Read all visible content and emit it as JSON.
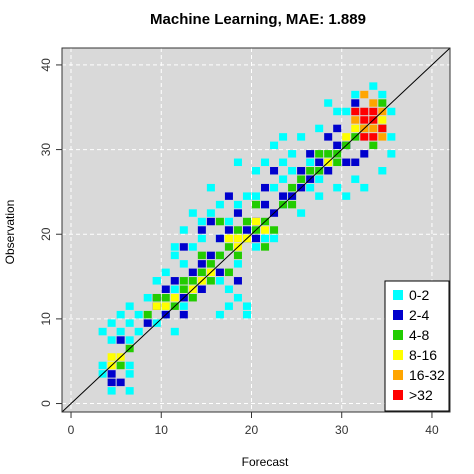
{
  "chart_data": {
    "type": "heatmap",
    "title": "Machine Learning, MAE: 1.889",
    "xlabel": "Forecast",
    "ylabel": "Observation",
    "xlim": [
      -1,
      42
    ],
    "ylim": [
      -1,
      42
    ],
    "xticks": [
      0,
      10,
      20,
      30,
      40
    ],
    "yticks": [
      0,
      10,
      20,
      30,
      40
    ],
    "grid": true,
    "reference_line": "y = x",
    "bin_width": 1,
    "legend_position": "bottom-right",
    "legend": [
      {
        "label": "0-2",
        "color": "#00ffff"
      },
      {
        "label": "2-4",
        "color": "#0000cd"
      },
      {
        "label": "4-8",
        "color": "#22cc00"
      },
      {
        "label": "8-16",
        "color": "#ffff00"
      },
      {
        "label": "16-32",
        "color": "#ffa500"
      },
      {
        "label": ">32",
        "color": "#ff0000"
      }
    ],
    "bins_by_class": [
      [
        [
          4,
          1
        ],
        [
          6,
          1
        ],
        [
          3,
          3
        ],
        [
          6,
          3
        ],
        [
          3,
          4
        ],
        [
          6,
          4
        ],
        [
          4,
          7
        ],
        [
          6,
          7
        ],
        [
          3,
          8
        ],
        [
          5,
          8
        ],
        [
          7,
          8
        ],
        [
          4,
          9
        ],
        [
          6,
          9
        ],
        [
          5,
          10
        ],
        [
          7,
          10
        ],
        [
          6,
          11
        ],
        [
          9,
          9
        ],
        [
          8,
          12
        ],
        [
          10,
          11
        ],
        [
          9,
          14
        ],
        [
          11,
          13
        ],
        [
          10,
          15
        ],
        [
          13,
          13
        ],
        [
          12,
          16
        ],
        [
          11,
          18
        ],
        [
          13,
          18
        ],
        [
          12,
          20
        ],
        [
          14,
          21
        ],
        [
          13,
          22
        ],
        [
          11,
          17
        ],
        [
          15,
          22
        ],
        [
          16,
          10
        ],
        [
          17,
          11
        ],
        [
          17,
          13
        ],
        [
          16,
          14
        ],
        [
          18,
          12
        ],
        [
          19,
          10
        ],
        [
          19,
          11
        ],
        [
          18,
          16
        ],
        [
          16,
          17
        ],
        [
          16,
          19
        ],
        [
          18,
          23
        ],
        [
          19,
          24
        ],
        [
          20,
          24
        ],
        [
          20,
          18
        ],
        [
          21,
          19
        ],
        [
          22,
          19
        ],
        [
          21,
          23
        ],
        [
          23,
          23
        ],
        [
          22,
          25
        ],
        [
          20,
          27
        ],
        [
          21,
          28
        ],
        [
          23,
          28
        ],
        [
          24,
          27
        ],
        [
          23,
          31
        ],
        [
          25,
          31
        ],
        [
          24,
          24
        ],
        [
          22,
          30
        ],
        [
          24,
          29
        ],
        [
          26,
          28
        ],
        [
          27,
          32
        ],
        [
          28,
          35
        ],
        [
          29,
          34
        ],
        [
          30,
          34
        ],
        [
          31,
          36
        ],
        [
          33,
          37
        ],
        [
          34,
          36
        ],
        [
          35,
          34
        ],
        [
          35,
          31
        ],
        [
          35,
          29
        ],
        [
          34,
          27
        ],
        [
          32,
          25
        ],
        [
          30,
          24
        ],
        [
          29,
          25
        ],
        [
          28,
          28
        ],
        [
          27,
          26
        ],
        [
          26,
          25
        ],
        [
          31,
          26
        ],
        [
          27,
          24
        ],
        [
          25,
          22
        ],
        [
          23,
          26
        ],
        [
          15,
          25
        ],
        [
          16,
          23
        ],
        [
          17,
          21
        ],
        [
          14,
          19
        ],
        [
          18,
          28
        ],
        [
          9,
          14
        ],
        [
          12,
          11
        ],
        [
          10,
          10
        ],
        [
          11,
          8
        ]
      ],
      [
        [
          4,
          2
        ],
        [
          5,
          2
        ],
        [
          4,
          3
        ],
        [
          5,
          7
        ],
        [
          8,
          9
        ],
        [
          9,
          11
        ],
        [
          10,
          10
        ],
        [
          9,
          12
        ],
        [
          10,
          13
        ],
        [
          11,
          14
        ],
        [
          12,
          12
        ],
        [
          12,
          10
        ],
        [
          13,
          15
        ],
        [
          14,
          16
        ],
        [
          15,
          17
        ],
        [
          16,
          19
        ],
        [
          17,
          20
        ],
        [
          17,
          24
        ],
        [
          18,
          22
        ],
        [
          19,
          20
        ],
        [
          20,
          19
        ],
        [
          20,
          21
        ],
        [
          21,
          23
        ],
        [
          22,
          22
        ],
        [
          23,
          24
        ],
        [
          24,
          24
        ],
        [
          25,
          25
        ],
        [
          25,
          27
        ],
        [
          26,
          26
        ],
        [
          26,
          29
        ],
        [
          27,
          28
        ],
        [
          28,
          27
        ],
        [
          29,
          30
        ],
        [
          30,
          30
        ],
        [
          30,
          28
        ],
        [
          31,
          28
        ],
        [
          32,
          29
        ],
        [
          28,
          31
        ],
        [
          29,
          32
        ],
        [
          31,
          35
        ],
        [
          12,
          18
        ],
        [
          14,
          20
        ],
        [
          15,
          21
        ],
        [
          18,
          14
        ],
        [
          14,
          13
        ],
        [
          16,
          15
        ],
        [
          21,
          25
        ],
        [
          22,
          27
        ]
      ],
      [
        [
          5,
          4
        ],
        [
          6,
          6
        ],
        [
          8,
          10
        ],
        [
          9,
          12
        ],
        [
          10,
          12
        ],
        [
          11,
          11
        ],
        [
          12,
          13
        ],
        [
          13,
          14
        ],
        [
          13,
          12
        ],
        [
          14,
          15
        ],
        [
          15,
          14
        ],
        [
          15,
          16
        ],
        [
          16,
          17
        ],
        [
          17,
          15
        ],
        [
          17,
          18
        ],
        [
          18,
          20
        ],
        [
          19,
          21
        ],
        [
          19,
          19
        ],
        [
          20,
          20
        ],
        [
          21,
          21
        ],
        [
          22,
          20
        ],
        [
          23,
          23
        ],
        [
          24,
          25
        ],
        [
          25,
          26
        ],
        [
          26,
          27
        ],
        [
          27,
          29
        ],
        [
          28,
          29
        ],
        [
          29,
          29
        ],
        [
          29,
          28
        ],
        [
          30,
          30
        ],
        [
          31,
          31
        ],
        [
          32,
          32
        ],
        [
          33,
          30
        ],
        [
          34,
          32
        ],
        [
          34,
          35
        ],
        [
          16,
          21
        ],
        [
          18,
          17
        ],
        [
          12,
          14
        ],
        [
          14,
          17
        ],
        [
          21,
          18
        ],
        [
          20,
          23
        ],
        [
          27,
          27
        ],
        [
          24,
          23
        ]
      ],
      [
        [
          4,
          4
        ],
        [
          4,
          5
        ],
        [
          5,
          5
        ],
        [
          9,
          11
        ],
        [
          10,
          11
        ],
        [
          11,
          12
        ],
        [
          13,
          13
        ],
        [
          14,
          14
        ],
        [
          15,
          15
        ],
        [
          18,
          18
        ],
        [
          19,
          19
        ],
        [
          20,
          21
        ],
        [
          21,
          20
        ],
        [
          28,
          28
        ],
        [
          30,
          31
        ],
        [
          31,
          32
        ],
        [
          33,
          33
        ],
        [
          34,
          33
        ],
        [
          18,
          19
        ],
        [
          17,
          19
        ]
      ],
      [
        [
          32,
          32
        ],
        [
          33,
          35
        ],
        [
          33,
          32
        ],
        [
          34,
          34
        ],
        [
          31,
          33
        ],
        [
          34,
          31
        ],
        [
          32,
          36
        ]
      ],
      [
        [
          32,
          33
        ],
        [
          32,
          34
        ],
        [
          33,
          34
        ],
        [
          33,
          33
        ],
        [
          34,
          32
        ],
        [
          33,
          31
        ],
        [
          32,
          31
        ],
        [
          31,
          34
        ]
      ]
    ]
  }
}
